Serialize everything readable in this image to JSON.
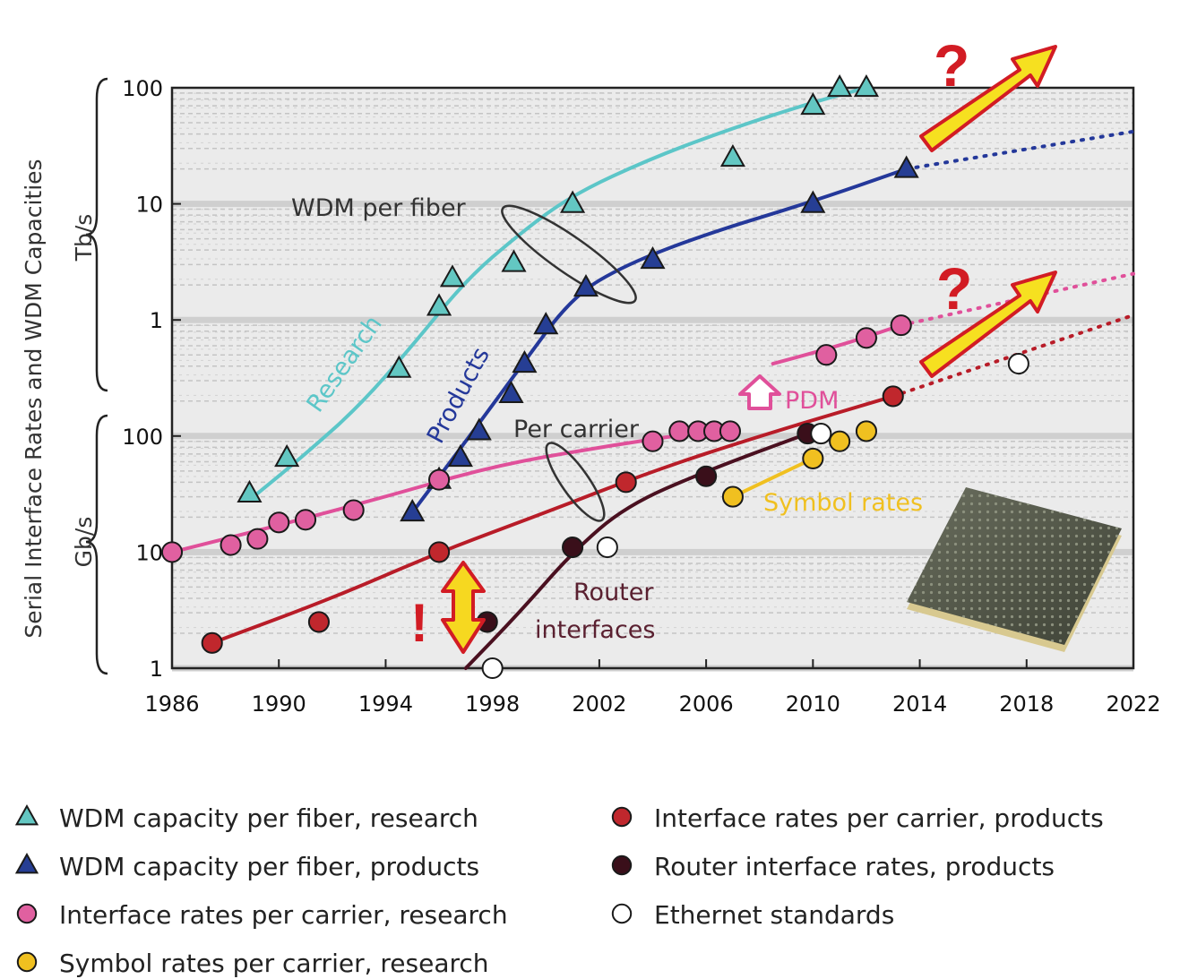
{
  "chart_data": {
    "type": "scatter",
    "ylabel": "Serial Interface Rates and WDM Capacities",
    "y_scale": "log",
    "xlim": [
      1986,
      2022
    ],
    "ylim_gbps": [
      1,
      100000
    ],
    "x_ticks": [
      "1986",
      "1990",
      "1994",
      "1998",
      "2002",
      "2006",
      "2010",
      "2014",
      "2018",
      "2022"
    ],
    "y_ticks_tbps": [
      "100",
      "10",
      "1"
    ],
    "y_ticks_gbps": [
      "100",
      "10",
      "1"
    ],
    "y_unit_tbps": "Tb/s",
    "y_unit_gbps": "Gb/s",
    "grid": true,
    "series": [
      {
        "name": "WDM capacity per fiber, research",
        "marker": "triangle",
        "color": "#63c7c2",
        "points": [
          [
            1988.9,
            32
          ],
          [
            1990.3,
            65
          ],
          [
            1994.5,
            380
          ],
          [
            1996.0,
            1300
          ],
          [
            1996.5,
            2300
          ],
          [
            1998.8,
            3100
          ],
          [
            2001.0,
            10000
          ],
          [
            2007.0,
            25000
          ],
          [
            2010.0,
            70000
          ],
          [
            2011.0,
            100000
          ],
          [
            2012.0,
            100000
          ]
        ]
      },
      {
        "name": "WDM capacity per fiber, products",
        "marker": "triangle",
        "color": "#263e94",
        "points": [
          [
            1995.0,
            22
          ],
          [
            1996.0,
            42
          ],
          [
            1996.8,
            65
          ],
          [
            1997.5,
            110
          ],
          [
            1998.7,
            230
          ],
          [
            1999.2,
            420
          ],
          [
            2000.0,
            900
          ],
          [
            2001.5,
            1900
          ],
          [
            2004.0,
            3300
          ],
          [
            2010.0,
            10000
          ],
          [
            2013.5,
            20000
          ]
        ]
      },
      {
        "name": "Interface rates per carrier, research",
        "marker": "circle",
        "color": "#e060a0",
        "points": [
          [
            1986.0,
            10
          ],
          [
            1988.2,
            11.5
          ],
          [
            1989.2,
            13
          ],
          [
            1990.0,
            18
          ],
          [
            1991.0,
            19
          ],
          [
            1992.8,
            23
          ],
          [
            1996.0,
            42
          ],
          [
            2004.0,
            90
          ],
          [
            2005.0,
            110
          ],
          [
            2005.7,
            110
          ],
          [
            2006.3,
            110
          ],
          [
            2006.9,
            110
          ],
          [
            2010.5,
            500
          ],
          [
            2012.0,
            700
          ],
          [
            2013.3,
            900
          ]
        ]
      },
      {
        "name": "Interface rates per carrier, products",
        "marker": "circle",
        "color": "#c0272d",
        "points": [
          [
            1987.5,
            1.65
          ],
          [
            1991.5,
            2.5
          ],
          [
            1996.0,
            10
          ],
          [
            2003.0,
            40
          ],
          [
            2013.0,
            220
          ]
        ]
      },
      {
        "name": "Router interface rates, products",
        "marker": "circle",
        "color": "#3a0f1a",
        "points": [
          [
            1997.8,
            2.5
          ],
          [
            2001.0,
            11
          ],
          [
            2006.0,
            45
          ],
          [
            2009.8,
            105
          ]
        ]
      },
      {
        "name": "Ethernet standards",
        "marker": "circle",
        "color": "#ffffff",
        "points": [
          [
            1998.0,
            1
          ],
          [
            2002.3,
            11
          ],
          [
            2010.3,
            105
          ],
          [
            2017.7,
            420
          ]
        ]
      },
      {
        "name": "Symbol rates per carrier, research",
        "marker": "circle",
        "color": "#f0c020",
        "points": [
          [
            2007.0,
            30
          ],
          [
            2010.0,
            64
          ],
          [
            2011.0,
            90
          ],
          [
            2012.0,
            110
          ]
        ]
      }
    ],
    "trend_lines": [
      {
        "name": "Research",
        "color": "#5cc6c8",
        "points": [
          [
            1989.2,
            32
          ],
          [
            1991,
            70
          ],
          [
            1993,
            180
          ],
          [
            1995,
            600
          ],
          [
            1997,
            2200
          ],
          [
            1999,
            5500
          ],
          [
            2001,
            12000
          ],
          [
            2004,
            25000
          ],
          [
            2007,
            45000
          ],
          [
            2010,
            75000
          ],
          [
            2012,
            100000
          ]
        ]
      },
      {
        "name": "Products",
        "color": "#24389a",
        "points": [
          [
            1995.0,
            22
          ],
          [
            1997,
            90
          ],
          [
            1999,
            380
          ],
          [
            2001,
            1600
          ],
          [
            2003,
            3000
          ],
          [
            2006,
            5500
          ],
          [
            2010,
            10500
          ],
          [
            2013.5,
            20000
          ]
        ]
      },
      {
        "name": "Products-trend",
        "color": "#24389a",
        "dashed": true,
        "points": [
          [
            2013.5,
            20000
          ],
          [
            2022,
            42000
          ]
        ]
      },
      {
        "name": "Per carrier research",
        "color": "#e0509a",
        "points": [
          [
            1986,
            10
          ],
          [
            1990,
            17
          ],
          [
            1994,
            30
          ],
          [
            1998,
            55
          ],
          [
            2002,
            80
          ],
          [
            2006,
            110
          ]
        ]
      },
      {
        "name": "PDM",
        "color": "#e0509a",
        "points": [
          [
            2008.5,
            420
          ],
          [
            2011,
            600
          ],
          [
            2013.3,
            900
          ]
        ]
      },
      {
        "name": "PDM-trend",
        "color": "#e0509a",
        "dashed": true,
        "points": [
          [
            2013.3,
            900
          ],
          [
            2022,
            2500
          ]
        ]
      },
      {
        "name": "Per carrier products",
        "color": "#b81c28",
        "points": [
          [
            1987.5,
            1.65
          ],
          [
            1992,
            4
          ],
          [
            1996,
            10
          ],
          [
            2000,
            22
          ],
          [
            2004,
            50
          ],
          [
            2008,
            100
          ],
          [
            2013,
            220
          ]
        ]
      },
      {
        "name": "Per carrier products-trend",
        "color": "#b81c28",
        "dashed": true,
        "points": [
          [
            2013,
            220
          ],
          [
            2022,
            1100
          ]
        ]
      },
      {
        "name": "Router",
        "color": "#4a1020",
        "points": [
          [
            1997.0,
            1.0
          ],
          [
            1999,
            3
          ],
          [
            2001,
            10
          ],
          [
            2003,
            25
          ],
          [
            2006,
            50
          ],
          [
            2009.8,
            105
          ]
        ]
      },
      {
        "name": "Symbol",
        "color": "#f0c020",
        "points": [
          [
            2007.0,
            30
          ],
          [
            2010.0,
            64
          ]
        ]
      }
    ],
    "annotations": {
      "wdm_per_fiber": "WDM per fiber",
      "research": "Research",
      "products": "Products",
      "per_carrier": "Per carrier",
      "pdm": "PDM",
      "symbol_rates": "Symbol rates",
      "router_interfaces_1": "Router",
      "router_interfaces_2": "interfaces",
      "question": "?",
      "exclamation": "!"
    },
    "legend": {
      "placement": "bottom",
      "columns": [
        [
          {
            "label": "WDM capacity per fiber, research",
            "marker": "triangle",
            "color": "#63c7c2"
          },
          {
            "label": "WDM capacity per fiber, products",
            "marker": "triangle",
            "color": "#263e94"
          },
          {
            "label": "Interface rates per carrier, research",
            "marker": "circle",
            "color": "#e060a0"
          },
          {
            "label": "Symbol rates per carrier, research",
            "marker": "circle",
            "color": "#f0c020"
          }
        ],
        [
          {
            "label": "Interface rates per carrier, products",
            "marker": "circle",
            "color": "#c0272d"
          },
          {
            "label": "Router interface rates, products",
            "marker": "circle",
            "color": "#3a0f1a"
          },
          {
            "label": "Ethernet standards",
            "marker": "circle",
            "color": "#ffffff"
          }
        ]
      ]
    }
  }
}
